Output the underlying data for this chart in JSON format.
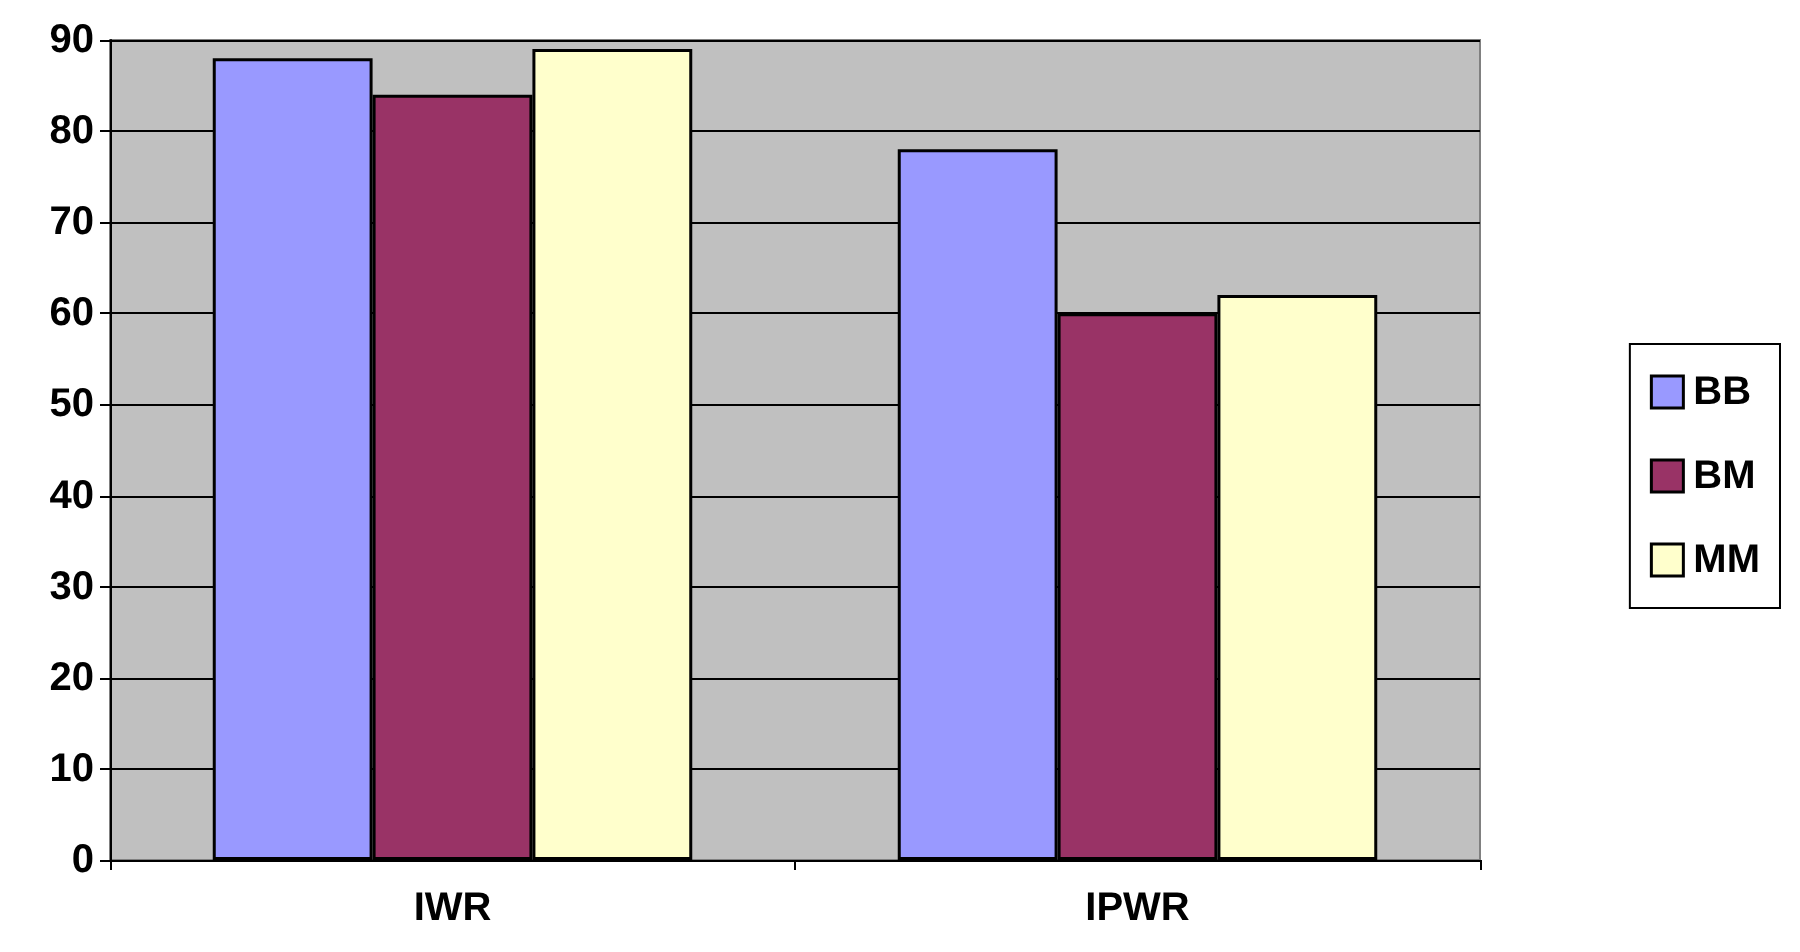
{
  "chart_data": {
    "type": "bar",
    "categories": [
      "IWR",
      "IPWR"
    ],
    "series": [
      {
        "name": "BB",
        "color": "#9999ff",
        "values": [
          88,
          78
        ]
      },
      {
        "name": "BM",
        "color": "#993366",
        "values": [
          84,
          60
        ]
      },
      {
        "name": "MM",
        "color": "#ffffcc",
        "values": [
          89,
          62
        ]
      }
    ],
    "ylim": [
      0,
      90
    ],
    "yticks": [
      0,
      10,
      20,
      30,
      40,
      50,
      60,
      70,
      80,
      90
    ],
    "grid": "y",
    "legend": "right"
  }
}
